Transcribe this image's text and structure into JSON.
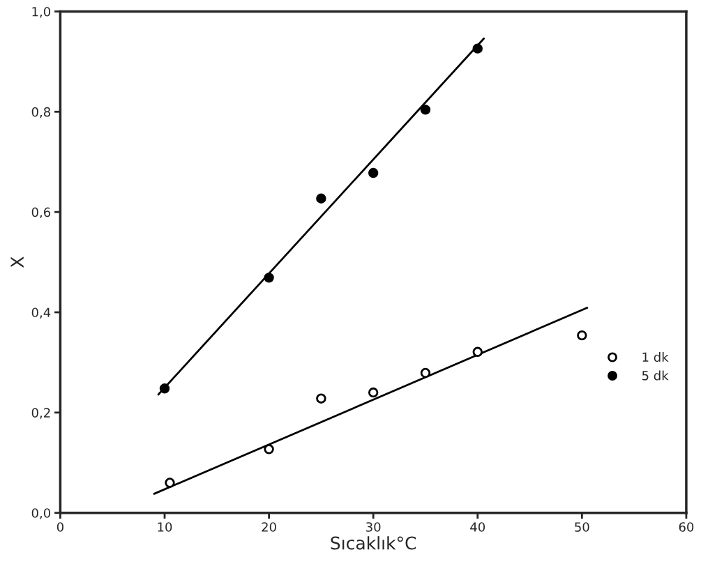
{
  "chart_data": {
    "type": "scatter",
    "xlabel": "Sıcaklık°C",
    "ylabel": "X",
    "xlim": [
      0,
      60
    ],
    "xticks": [
      0,
      10,
      20,
      30,
      40,
      50,
      60
    ],
    "ylim": [
      0,
      1.0
    ],
    "yticks": [
      {
        "value": 0,
        "label": "0,0"
      },
      {
        "value": 0.2,
        "label": "0,2"
      },
      {
        "value": 0.4,
        "label": "0,4"
      },
      {
        "value": 0.6,
        "label": "0,6"
      },
      {
        "value": 0.8,
        "label": "0,8"
      },
      {
        "value": 1.0,
        "label": "1,0"
      }
    ],
    "grid": false,
    "legend": "right",
    "series": [
      {
        "name": "1 dk",
        "marker": "circle",
        "color": "#ffffff",
        "x": [
          10.5,
          20,
          25,
          30,
          35,
          40,
          50
        ],
        "values": [
          0.06,
          0.127,
          0.228,
          0.24,
          0.279,
          0.321,
          0.354
        ]
      },
      {
        "name": "5 dk",
        "marker": "circle",
        "color": "#000000",
        "x": [
          10,
          20,
          25,
          30,
          35,
          40
        ],
        "values": [
          0.248,
          0.469,
          0.627,
          0.678,
          0.804,
          0.926
        ]
      },
      {
        "type": "line",
        "color": "#000000",
        "x": [
          9.0,
          50.5
        ],
        "values": [
          0.038,
          0.409
        ]
      },
      {
        "type": "line",
        "color": "#000000",
        "x": [
          9.4,
          40.6
        ],
        "values": [
          0.236,
          0.946
        ]
      }
    ]
  }
}
